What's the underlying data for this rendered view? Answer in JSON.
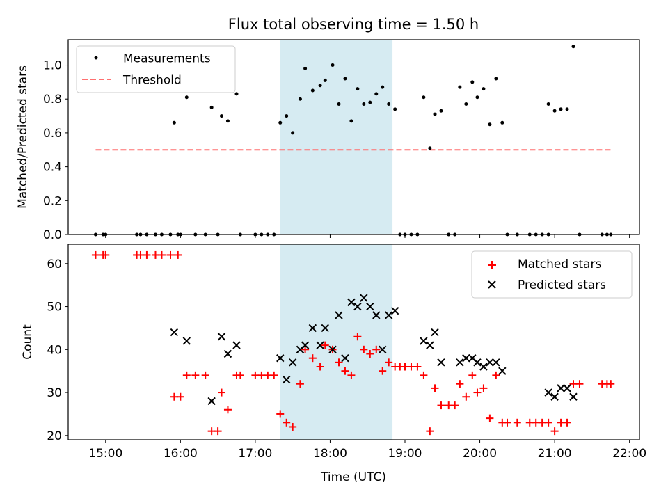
{
  "chart_data": [
    {
      "type": "scatter",
      "panel": "top",
      "title": "Flux total observing time = 1.50 h",
      "xlabel": "",
      "ylabel": "Matched/Predicted stars",
      "xlim": [
        "14:30",
        "22:08"
      ],
      "ylim": [
        0,
        1.15
      ],
      "yticks": [
        "0.0",
        "0.2",
        "0.4",
        "0.6",
        "0.8",
        "1.0"
      ],
      "grid": false,
      "legend_position": "upper left",
      "shaded_interval": {
        "start": "17:20",
        "end": "18:50",
        "color": "#add8e6"
      },
      "threshold": {
        "name": "Threshold",
        "value": 0.5,
        "x_start": "14:52",
        "x_end": "21:45",
        "color": "#ff7070"
      },
      "series": [
        {
          "name": "Measurements",
          "marker": "dot",
          "color": "#000000",
          "points": [
            [
              "14:52",
              0
            ],
            [
              "14:58",
              0
            ],
            [
              "15:00",
              0
            ],
            [
              "15:25",
              0
            ],
            [
              "15:28",
              0
            ],
            [
              "15:33",
              0
            ],
            [
              "15:40",
              0
            ],
            [
              "15:45",
              0
            ],
            [
              "15:52",
              0
            ],
            [
              "15:58",
              0
            ],
            [
              "15:55",
              0.66
            ],
            [
              "16:00",
              0
            ],
            [
              "16:05",
              0.81
            ],
            [
              "16:12",
              0
            ],
            [
              "16:20",
              0
            ],
            [
              "16:25",
              0.75
            ],
            [
              "16:30",
              0
            ],
            [
              "16:33",
              0.7
            ],
            [
              "16:38",
              0.67
            ],
            [
              "16:45",
              0.83
            ],
            [
              "16:48",
              0
            ],
            [
              "17:00",
              0
            ],
            [
              "17:05",
              0
            ],
            [
              "17:10",
              0
            ],
            [
              "17:15",
              0
            ],
            [
              "17:20",
              0.66
            ],
            [
              "17:25",
              0.7
            ],
            [
              "17:30",
              0.6
            ],
            [
              "17:36",
              0.8
            ],
            [
              "17:40",
              0.98
            ],
            [
              "17:46",
              0.85
            ],
            [
              "17:52",
              0.88
            ],
            [
              "17:56",
              0.91
            ],
            [
              "18:02",
              1.0
            ],
            [
              "18:07",
              0.77
            ],
            [
              "18:12",
              0.92
            ],
            [
              "18:17",
              0.67
            ],
            [
              "18:22",
              0.86
            ],
            [
              "18:27",
              0.77
            ],
            [
              "18:32",
              0.78
            ],
            [
              "18:37",
              0.83
            ],
            [
              "18:42",
              0.87
            ],
            [
              "18:47",
              0.77
            ],
            [
              "18:52",
              0.74
            ],
            [
              "18:56",
              0
            ],
            [
              "19:00",
              0
            ],
            [
              "19:05",
              0
            ],
            [
              "19:10",
              0
            ],
            [
              "19:15",
              0.81
            ],
            [
              "19:20",
              0.51
            ],
            [
              "19:24",
              0.71
            ],
            [
              "19:29",
              0.73
            ],
            [
              "19:35",
              0
            ],
            [
              "19:40",
              0
            ],
            [
              "19:44",
              0.87
            ],
            [
              "19:49",
              0.77
            ],
            [
              "19:54",
              0.9
            ],
            [
              "19:58",
              0.81
            ],
            [
              "20:03",
              0.86
            ],
            [
              "20:08",
              0.65
            ],
            [
              "20:13",
              0.92
            ],
            [
              "20:18",
              0.66
            ],
            [
              "20:22",
              0
            ],
            [
              "20:30",
              0
            ],
            [
              "20:40",
              0
            ],
            [
              "20:45",
              0
            ],
            [
              "20:50",
              0
            ],
            [
              "20:55",
              0
            ],
            [
              "20:55",
              0.77
            ],
            [
              "21:00",
              0.73
            ],
            [
              "21:05",
              0.74
            ],
            [
              "21:10",
              0.74
            ],
            [
              "21:15",
              1.11
            ],
            [
              "21:20",
              0
            ],
            [
              "21:38",
              0
            ],
            [
              "21:42",
              0
            ],
            [
              "21:45",
              0
            ]
          ]
        }
      ]
    },
    {
      "type": "scatter",
      "panel": "bottom",
      "title": "",
      "xlabel": "Time (UTC)",
      "ylabel": "Count",
      "xlim": [
        "14:30",
        "22:08"
      ],
      "ylim": [
        19,
        64.5
      ],
      "xticks": [
        "15:00",
        "16:00",
        "17:00",
        "18:00",
        "19:00",
        "20:00",
        "21:00",
        "22:00"
      ],
      "yticks": [
        "20",
        "30",
        "40",
        "50",
        "60"
      ],
      "grid": false,
      "legend_position": "upper right",
      "shaded_interval": {
        "start": "17:20",
        "end": "18:50",
        "color": "#add8e6"
      },
      "series": [
        {
          "name": "Matched stars",
          "marker": "plus",
          "color": "#ff0000",
          "points": [
            [
              "14:52",
              62
            ],
            [
              "14:58",
              62
            ],
            [
              "15:00",
              62
            ],
            [
              "15:25",
              62
            ],
            [
              "15:28",
              62
            ],
            [
              "15:33",
              62
            ],
            [
              "15:40",
              62
            ],
            [
              "15:45",
              62
            ],
            [
              "15:52",
              62
            ],
            [
              "15:58",
              62
            ],
            [
              "15:55",
              29
            ],
            [
              "16:00",
              29
            ],
            [
              "16:05",
              34
            ],
            [
              "16:12",
              34
            ],
            [
              "16:20",
              34
            ],
            [
              "16:25",
              21
            ],
            [
              "16:30",
              21
            ],
            [
              "16:33",
              30
            ],
            [
              "16:38",
              26
            ],
            [
              "16:45",
              34
            ],
            [
              "16:48",
              34
            ],
            [
              "17:00",
              34
            ],
            [
              "17:05",
              34
            ],
            [
              "17:10",
              34
            ],
            [
              "17:15",
              34
            ],
            [
              "17:20",
              25
            ],
            [
              "17:25",
              23
            ],
            [
              "17:30",
              22
            ],
            [
              "17:36",
              32
            ],
            [
              "17:40",
              40
            ],
            [
              "17:46",
              38
            ],
            [
              "17:52",
              36
            ],
            [
              "17:56",
              41
            ],
            [
              "18:02",
              40
            ],
            [
              "18:07",
              37
            ],
            [
              "18:12",
              35
            ],
            [
              "18:17",
              34
            ],
            [
              "18:22",
              43
            ],
            [
              "18:27",
              40
            ],
            [
              "18:32",
              39
            ],
            [
              "18:37",
              40
            ],
            [
              "18:42",
              35
            ],
            [
              "18:47",
              37
            ],
            [
              "18:52",
              36
            ],
            [
              "18:56",
              36
            ],
            [
              "19:00",
              36
            ],
            [
              "19:05",
              36
            ],
            [
              "19:10",
              36
            ],
            [
              "19:15",
              34
            ],
            [
              "19:20",
              21
            ],
            [
              "19:24",
              31
            ],
            [
              "19:29",
              27
            ],
            [
              "19:35",
              27
            ],
            [
              "19:40",
              27
            ],
            [
              "19:44",
              32
            ],
            [
              "19:49",
              29
            ],
            [
              "19:54",
              34
            ],
            [
              "19:58",
              30
            ],
            [
              "20:03",
              31
            ],
            [
              "20:08",
              24
            ],
            [
              "20:13",
              34
            ],
            [
              "20:18",
              23
            ],
            [
              "20:22",
              23
            ],
            [
              "20:30",
              23
            ],
            [
              "20:40",
              23
            ],
            [
              "20:45",
              23
            ],
            [
              "20:50",
              23
            ],
            [
              "20:55",
              23
            ],
            [
              "21:00",
              21
            ],
            [
              "21:05",
              23
            ],
            [
              "21:10",
              23
            ],
            [
              "21:15",
              32
            ],
            [
              "21:20",
              32
            ],
            [
              "21:38",
              32
            ],
            [
              "21:42",
              32
            ],
            [
              "21:45",
              32
            ]
          ]
        },
        {
          "name": "Predicted stars",
          "marker": "x",
          "color": "#000000",
          "points": [
            [
              "15:55",
              44
            ],
            [
              "16:05",
              42
            ],
            [
              "16:25",
              28
            ],
            [
              "16:33",
              43
            ],
            [
              "16:38",
              39
            ],
            [
              "16:45",
              41
            ],
            [
              "17:20",
              38
            ],
            [
              "17:25",
              33
            ],
            [
              "17:30",
              37
            ],
            [
              "17:36",
              40
            ],
            [
              "17:40",
              41
            ],
            [
              "17:46",
              45
            ],
            [
              "17:52",
              41
            ],
            [
              "17:56",
              45
            ],
            [
              "18:02",
              40
            ],
            [
              "18:07",
              48
            ],
            [
              "18:12",
              38
            ],
            [
              "18:17",
              51
            ],
            [
              "18:22",
              50
            ],
            [
              "18:27",
              52
            ],
            [
              "18:32",
              50
            ],
            [
              "18:37",
              48
            ],
            [
              "18:42",
              40
            ],
            [
              "18:47",
              48
            ],
            [
              "18:52",
              49
            ],
            [
              "19:15",
              42
            ],
            [
              "19:20",
              41
            ],
            [
              "19:24",
              44
            ],
            [
              "19:29",
              37
            ],
            [
              "19:44",
              37
            ],
            [
              "19:49",
              38
            ],
            [
              "19:54",
              38
            ],
            [
              "19:58",
              37
            ],
            [
              "20:03",
              36
            ],
            [
              "20:08",
              37
            ],
            [
              "20:13",
              37
            ],
            [
              "20:18",
              35
            ],
            [
              "20:55",
              30
            ],
            [
              "21:00",
              29
            ],
            [
              "21:05",
              31
            ],
            [
              "21:10",
              31
            ],
            [
              "21:15",
              29
            ]
          ]
        }
      ]
    }
  ]
}
